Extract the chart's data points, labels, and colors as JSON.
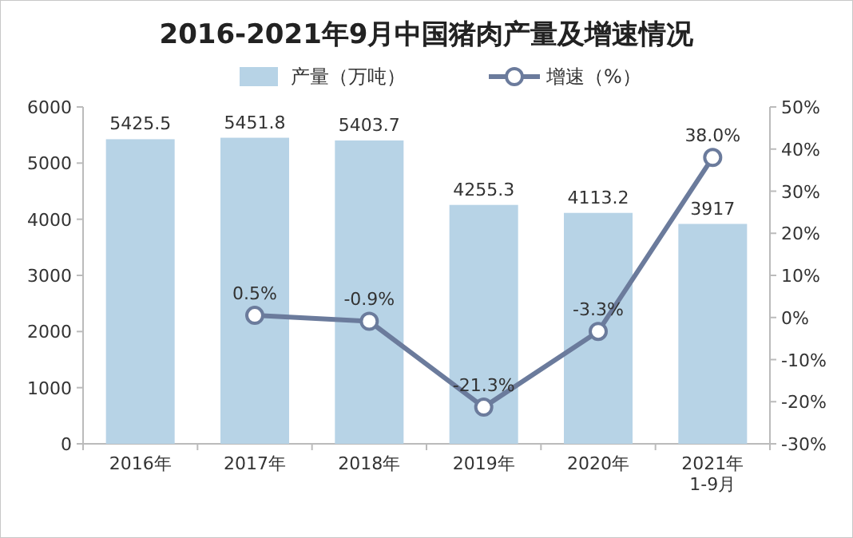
{
  "chart_data": {
    "type": "bar",
    "title": "2016-2021年9月中国猪肉产量及增速情况",
    "categories": [
      "2016年",
      "2017年",
      "2018年",
      "2019年",
      "2020年",
      "2021年 1-9月"
    ],
    "series": [
      {
        "name": "产量（万吨）",
        "color": "#b7d3e6",
        "values": [
          5425.5,
          5451.8,
          5403.7,
          4255.3,
          4113.2,
          3917
        ],
        "value_labels": [
          "5425.5",
          "5451.8",
          "5403.7",
          "4255.3",
          "4113.2",
          "3917"
        ]
      },
      {
        "name": "增速（%）",
        "type": "line",
        "axis": "y2",
        "color": "#6b7b9c",
        "values": [
          null,
          0.5,
          -0.9,
          -21.3,
          -3.3,
          38.0
        ],
        "value_labels": [
          null,
          "0.5%",
          "-0.9%",
          "-21.3%",
          "-3.3%",
          "38.0%"
        ]
      }
    ],
    "ylim": [
      0,
      6000
    ],
    "yticks": [
      0,
      1000,
      2000,
      3000,
      4000,
      5000,
      6000
    ],
    "y2lim": [
      -30,
      50
    ],
    "y2ticks": [
      {
        "value": -30,
        "label": "-30%"
      },
      {
        "value": -20,
        "label": "-20%"
      },
      {
        "value": -10,
        "label": "-10%"
      },
      {
        "value": 0,
        "label": "0%"
      },
      {
        "value": 10,
        "label": "10%"
      },
      {
        "value": 20,
        "label": "20%"
      },
      {
        "value": 30,
        "label": "30%"
      },
      {
        "value": 40,
        "label": "40%"
      },
      {
        "value": 50,
        "label": "50%"
      }
    ],
    "legend": "top",
    "marker": "circle",
    "grid": false
  }
}
